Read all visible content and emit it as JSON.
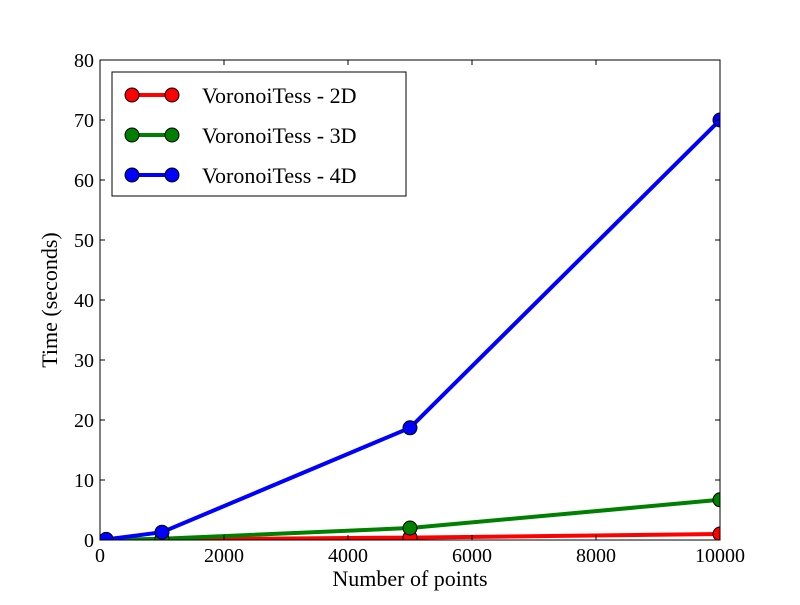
{
  "chart_data": {
    "type": "line",
    "title": "",
    "xlabel": "Number of points",
    "ylabel": "Time (seconds)",
    "xlim": [
      0,
      10000
    ],
    "ylim": [
      0,
      80
    ],
    "xticks": [
      0,
      2000,
      4000,
      6000,
      8000,
      10000
    ],
    "yticks": [
      0,
      10,
      20,
      30,
      40,
      50,
      60,
      70,
      80
    ],
    "xtick_labels": [
      "0",
      "2000",
      "4000",
      "6000",
      "8000",
      "10000"
    ],
    "ytick_labels": [
      "0",
      "10",
      "20",
      "30",
      "40",
      "50",
      "60",
      "70",
      "80"
    ],
    "grid": false,
    "legend_position": "top-left",
    "x": [
      100,
      1000,
      5000,
      10000
    ],
    "series": [
      {
        "name": "VoronoiTess - 2D",
        "color": "#ff0000",
        "marker": "circle",
        "values": [
          0.0,
          0.1,
          0.4,
          1.0
        ]
      },
      {
        "name": "VoronoiTess - 3D",
        "color": "#008000",
        "marker": "circle",
        "values": [
          0.0,
          0.2,
          2.0,
          6.7
        ]
      },
      {
        "name": "VoronoiTess - 4D",
        "color": "#0000ff",
        "marker": "circle",
        "values": [
          0.1,
          1.3,
          18.7,
          70.0
        ]
      }
    ]
  }
}
